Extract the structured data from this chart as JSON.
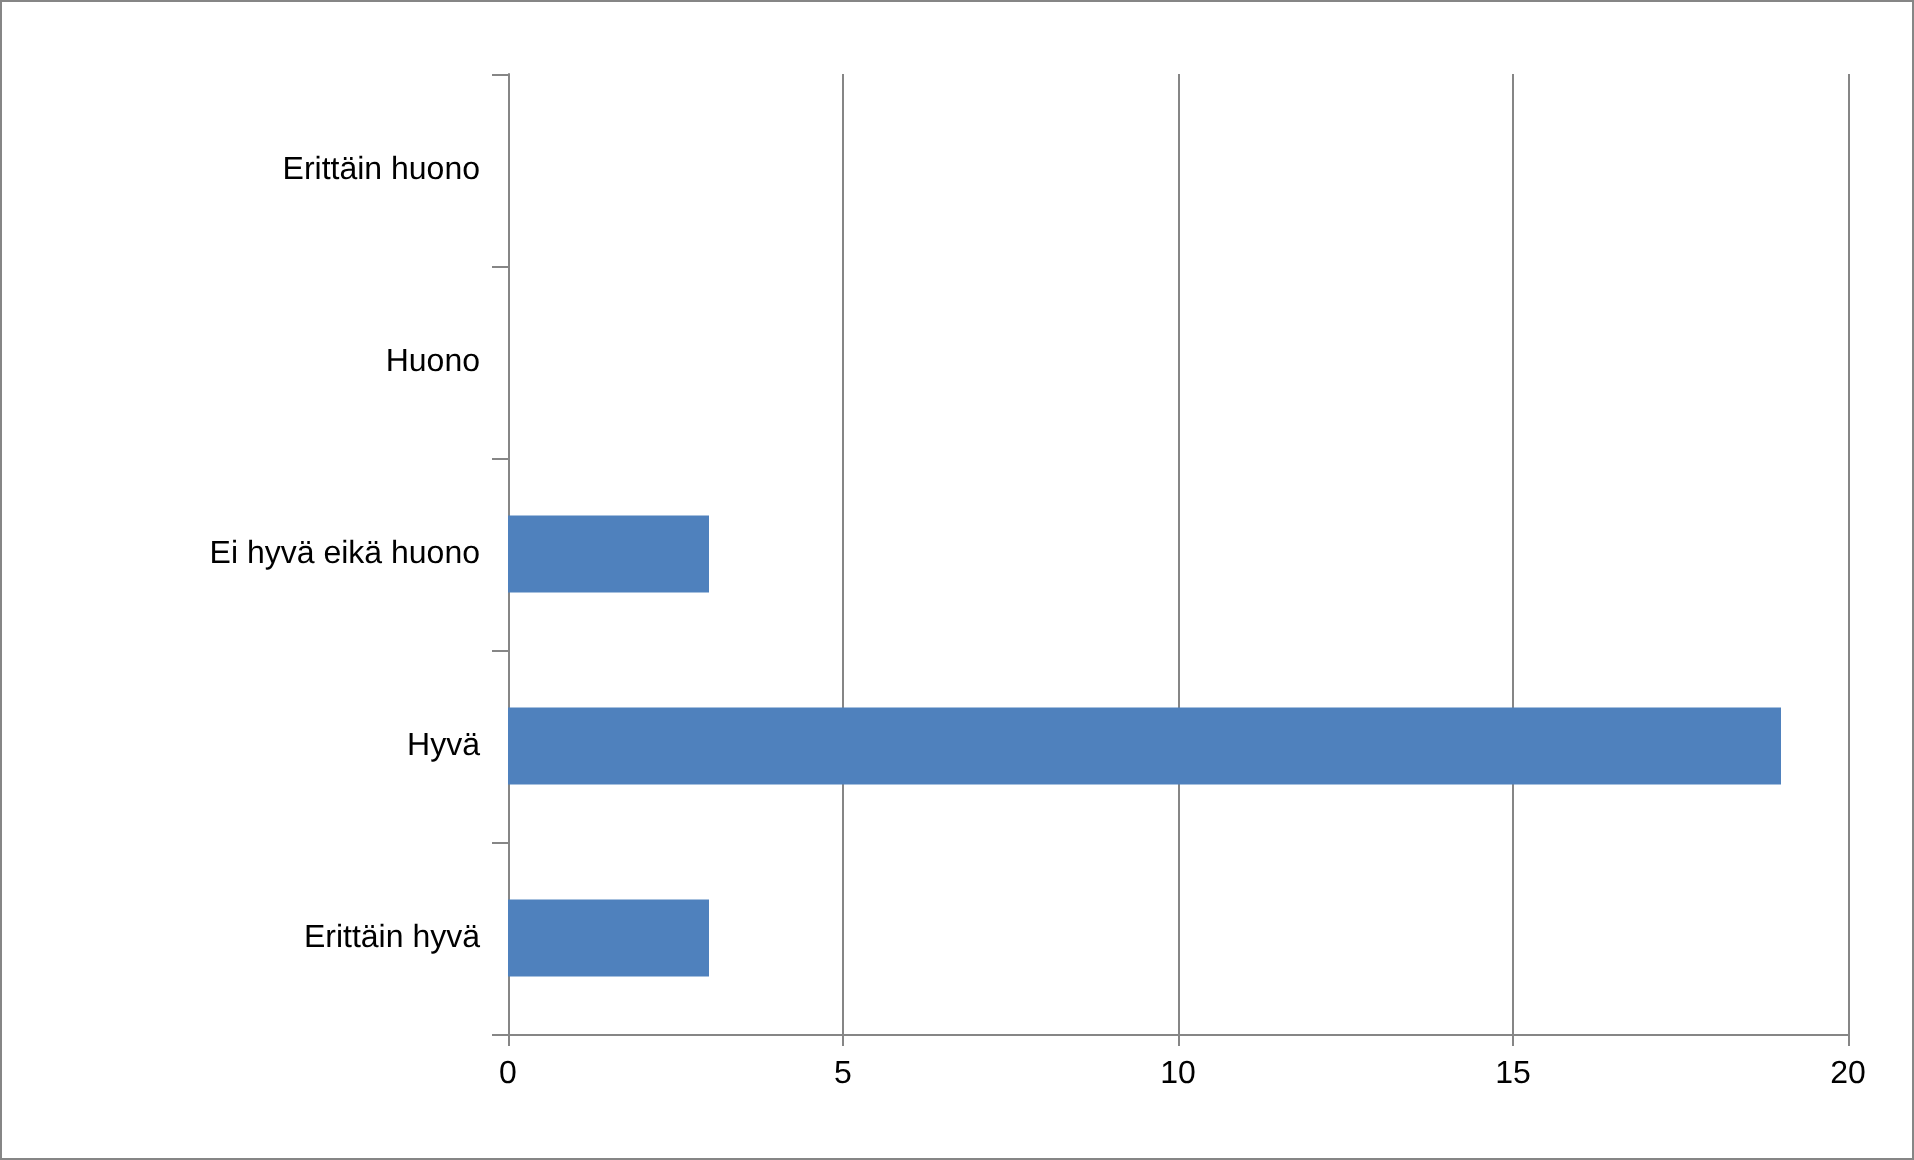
{
  "chart_data": {
    "type": "bar",
    "orientation": "horizontal",
    "categories": [
      "Erittäin huono",
      "Huono",
      "Ei hyvä eikä huono",
      "Hyvä",
      "Erittäin hyvä"
    ],
    "values": [
      0,
      0,
      3,
      19,
      3
    ],
    "color": "#4f81bd",
    "xlim": [
      0,
      20
    ],
    "xticks": [
      0,
      5,
      10,
      15,
      20
    ],
    "grid": "x"
  }
}
